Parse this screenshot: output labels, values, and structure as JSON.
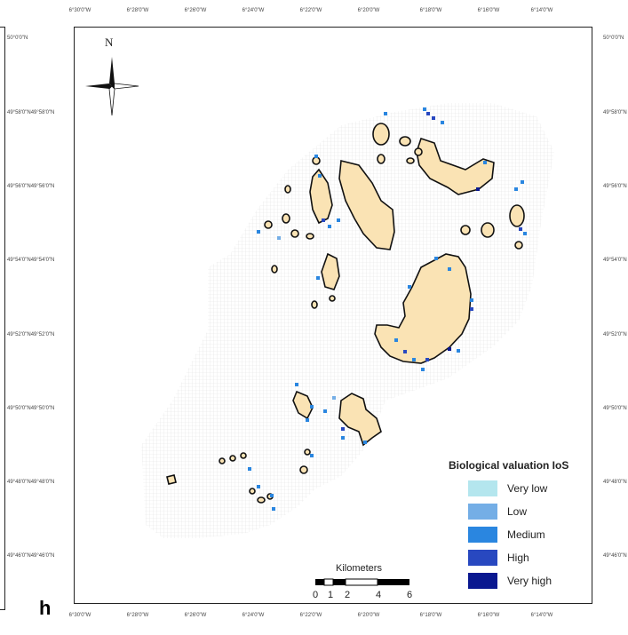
{
  "panel_label": "h",
  "map": {
    "top_ticks": [
      "6°30'0\"W",
      "6°28'0\"W",
      "6°26'0\"W",
      "6°24'0\"W",
      "6°22'0\"W",
      "6°20'0\"W",
      "6°18'0\"W",
      "6°16'0\"W",
      "6°14'0\"W"
    ],
    "bottom_ticks": [
      "6°30'0\"W",
      "6°28'0\"W",
      "6°26'0\"W",
      "6°24'0\"W",
      "6°22'0\"W",
      "6°20'0\"W",
      "6°18'0\"W",
      "6°16'0\"W",
      "6°14'0\"W"
    ],
    "left_ticks": [
      "50°0'0\"N",
      "49°58'0\"N49°58'0\"N",
      "49°56'0\"N49°56'0\"N",
      "49°54'0\"N49°54'0\"N",
      "49°52'0\"N49°52'0\"N",
      "49°50'0\"N49°50'0\"N",
      "49°48'0\"N49°48'0\"N",
      "49°46'0\"N49°46'0\"N"
    ],
    "right_ticks": [
      "50°0'0\"N",
      "49°58'0\"N",
      "49°56'0\"N",
      "49°54'0\"N",
      "49°52'0\"N",
      "49°50'0\"N",
      "49°48'0\"N",
      "49°46'0\"N"
    ]
  },
  "north_arrow": {
    "label": "N",
    "icon": "compass-rose-icon"
  },
  "legend": {
    "title": "Biological valuation IoS",
    "items": [
      {
        "label": "Very low",
        "color": "#b4e6ee"
      },
      {
        "label": "Low",
        "color": "#74aee6"
      },
      {
        "label": "Medium",
        "color": "#2a86e0"
      },
      {
        "label": "High",
        "color": "#2848c0"
      },
      {
        "label": "Very high",
        "color": "#0a1890"
      }
    ]
  },
  "scale_bar": {
    "title": "Kilometers",
    "labels": [
      "0",
      "1",
      "2",
      "4",
      "6"
    ]
  },
  "colors": {
    "land": "#fae3b4",
    "coastline": "#111111",
    "grid": "#e4e4e4"
  }
}
